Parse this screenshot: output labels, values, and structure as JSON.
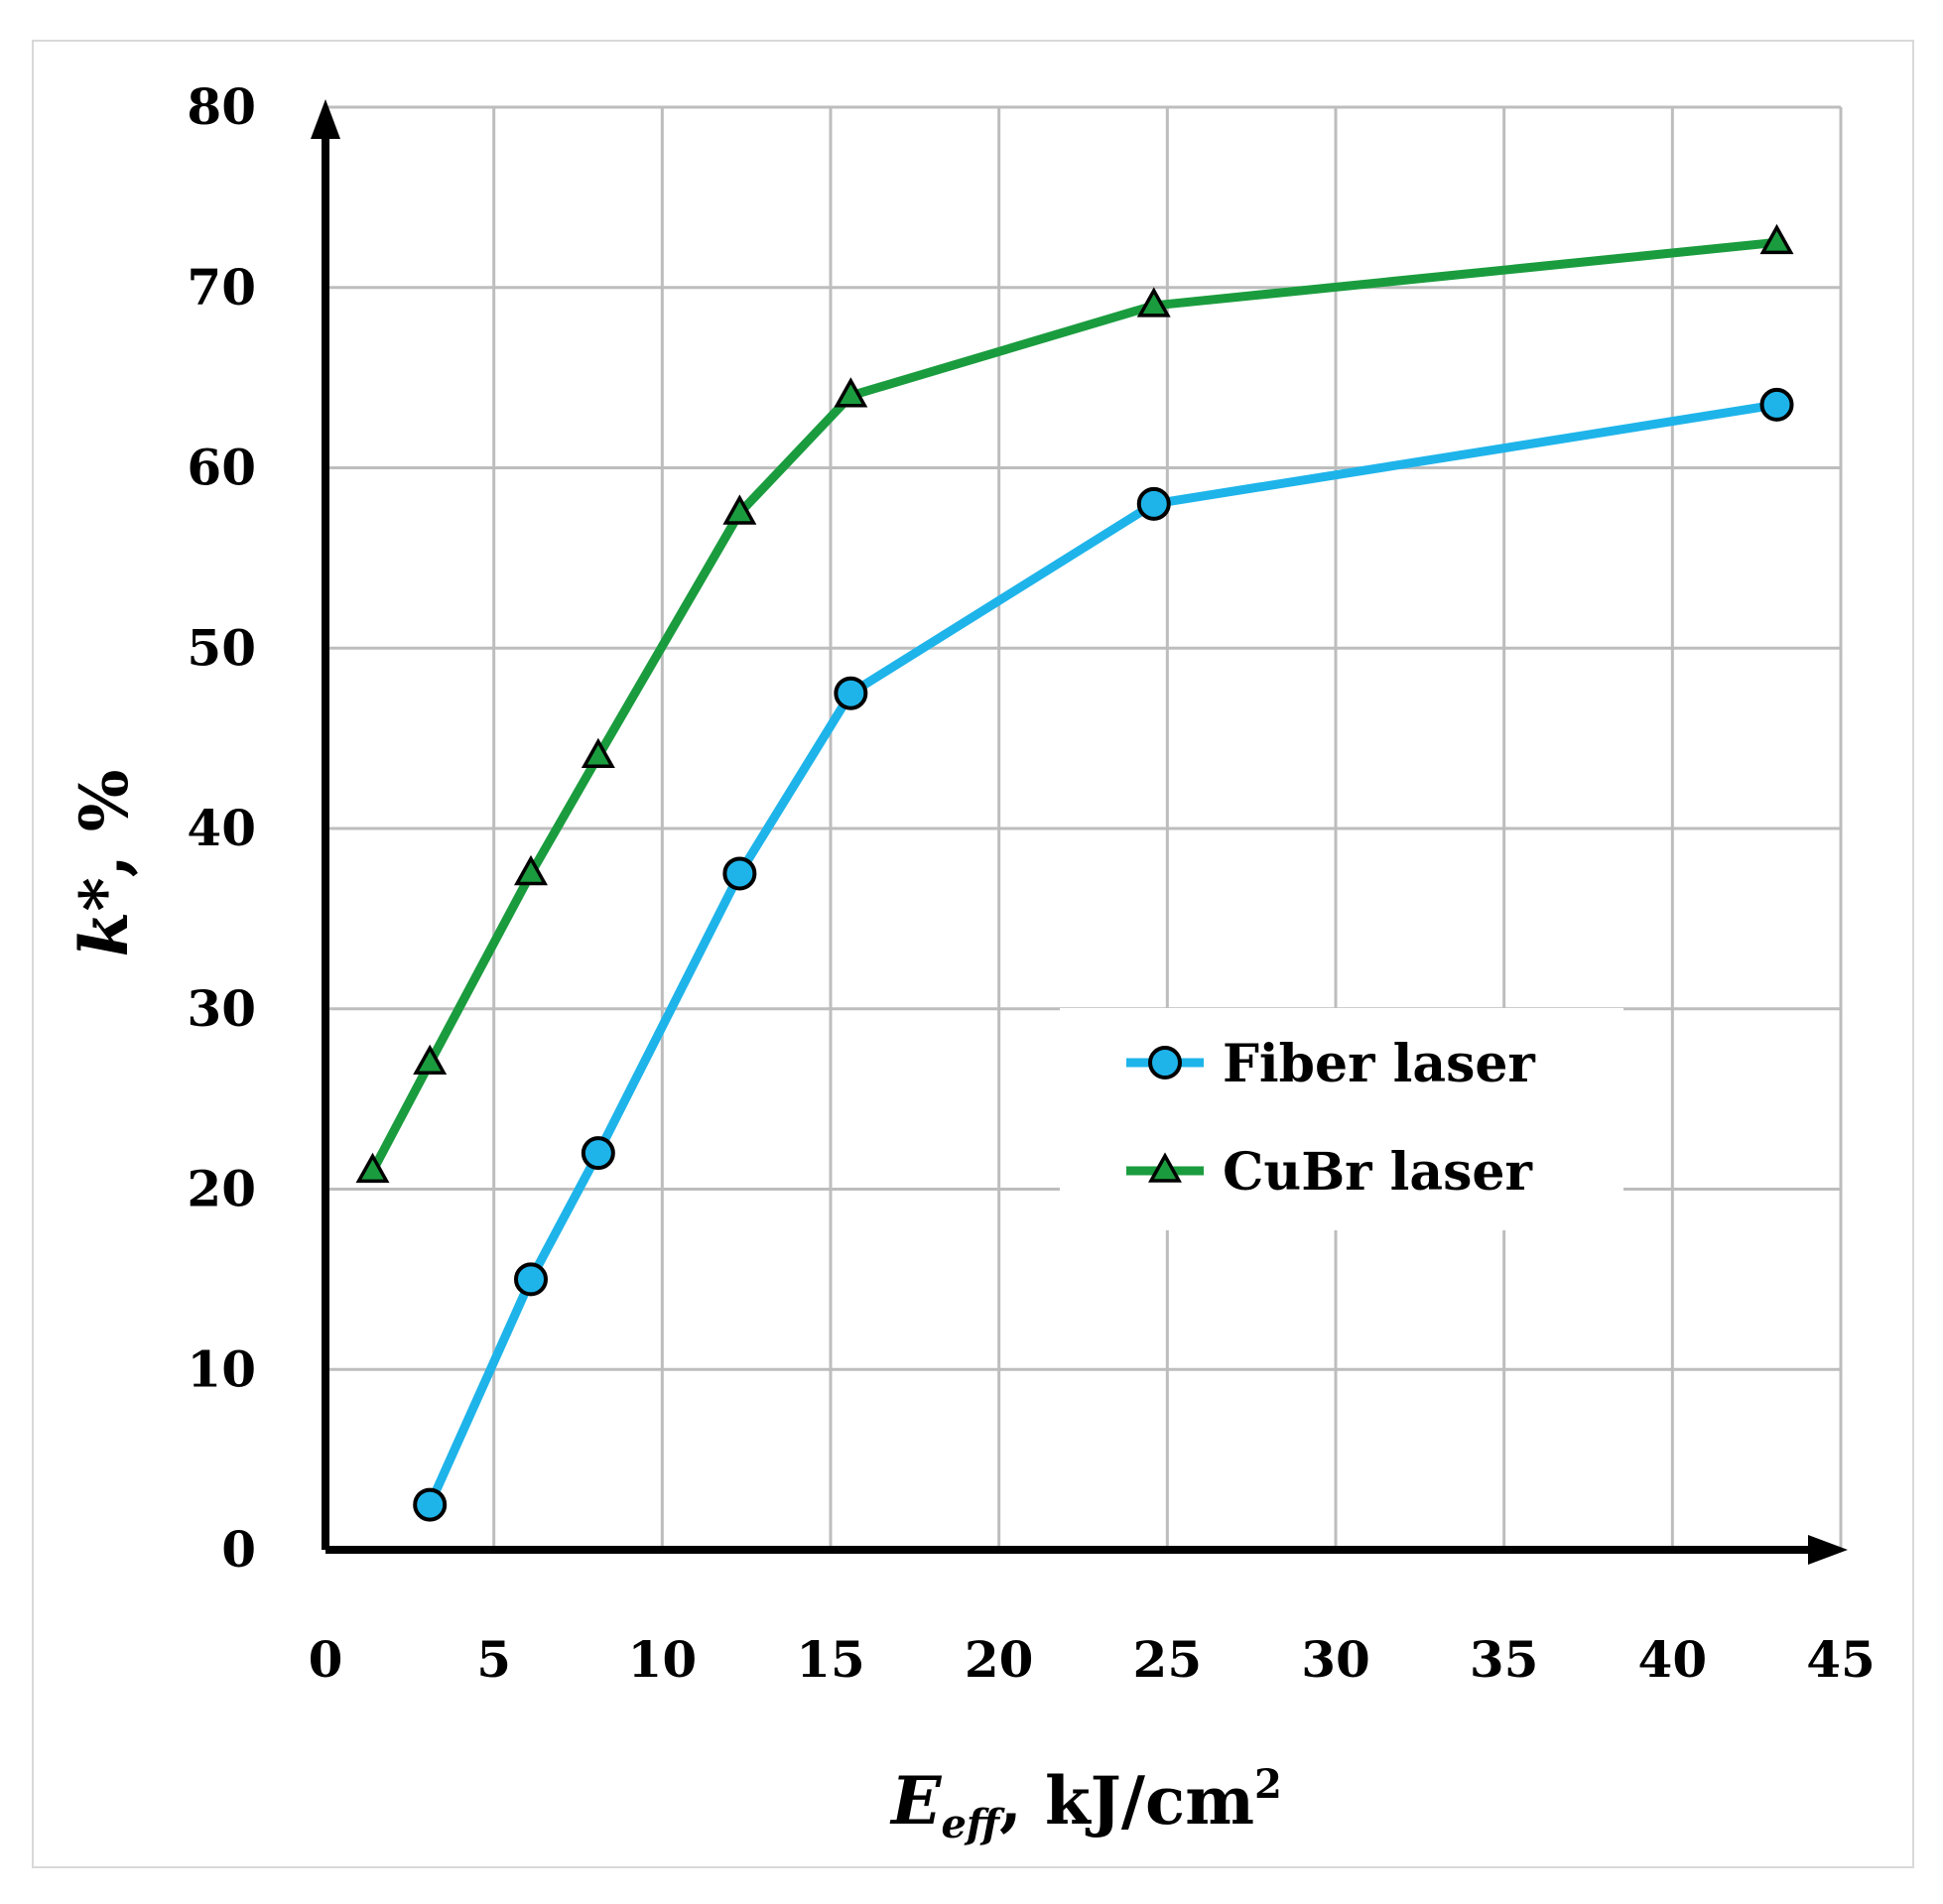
{
  "chart_data": {
    "type": "line",
    "title": "",
    "xlabel": {
      "main": "E",
      "sub": "eff",
      "unit": ", kJ/cm",
      "sup": "2"
    },
    "ylabel": {
      "main": "k",
      "rest": "*, %"
    },
    "xlim": [
      0,
      45
    ],
    "ylim": [
      0,
      80
    ],
    "xticks": [
      0,
      5,
      10,
      15,
      20,
      25,
      30,
      35,
      40,
      45
    ],
    "yticks": [
      0,
      10,
      20,
      30,
      40,
      50,
      60,
      70,
      80
    ],
    "grid": true,
    "legend_position": "center-right",
    "series": [
      {
        "name": "Fiber laser",
        "color": "#1eb4ea",
        "marker": "circle",
        "x": [
          3.1,
          6.1,
          8.1,
          12.3,
          15.6,
          24.6,
          43.1
        ],
        "y": [
          2.5,
          15,
          22,
          37.5,
          47.5,
          58,
          63.5
        ]
      },
      {
        "name": "CuBr laser",
        "color": "#1a9c3e",
        "marker": "triangle",
        "x": [
          1.4,
          3.1,
          6.1,
          8.1,
          12.3,
          15.6,
          24.6,
          43.1
        ],
        "y": [
          21,
          27,
          37.5,
          44,
          57.5,
          64,
          69,
          72.5
        ]
      }
    ]
  }
}
